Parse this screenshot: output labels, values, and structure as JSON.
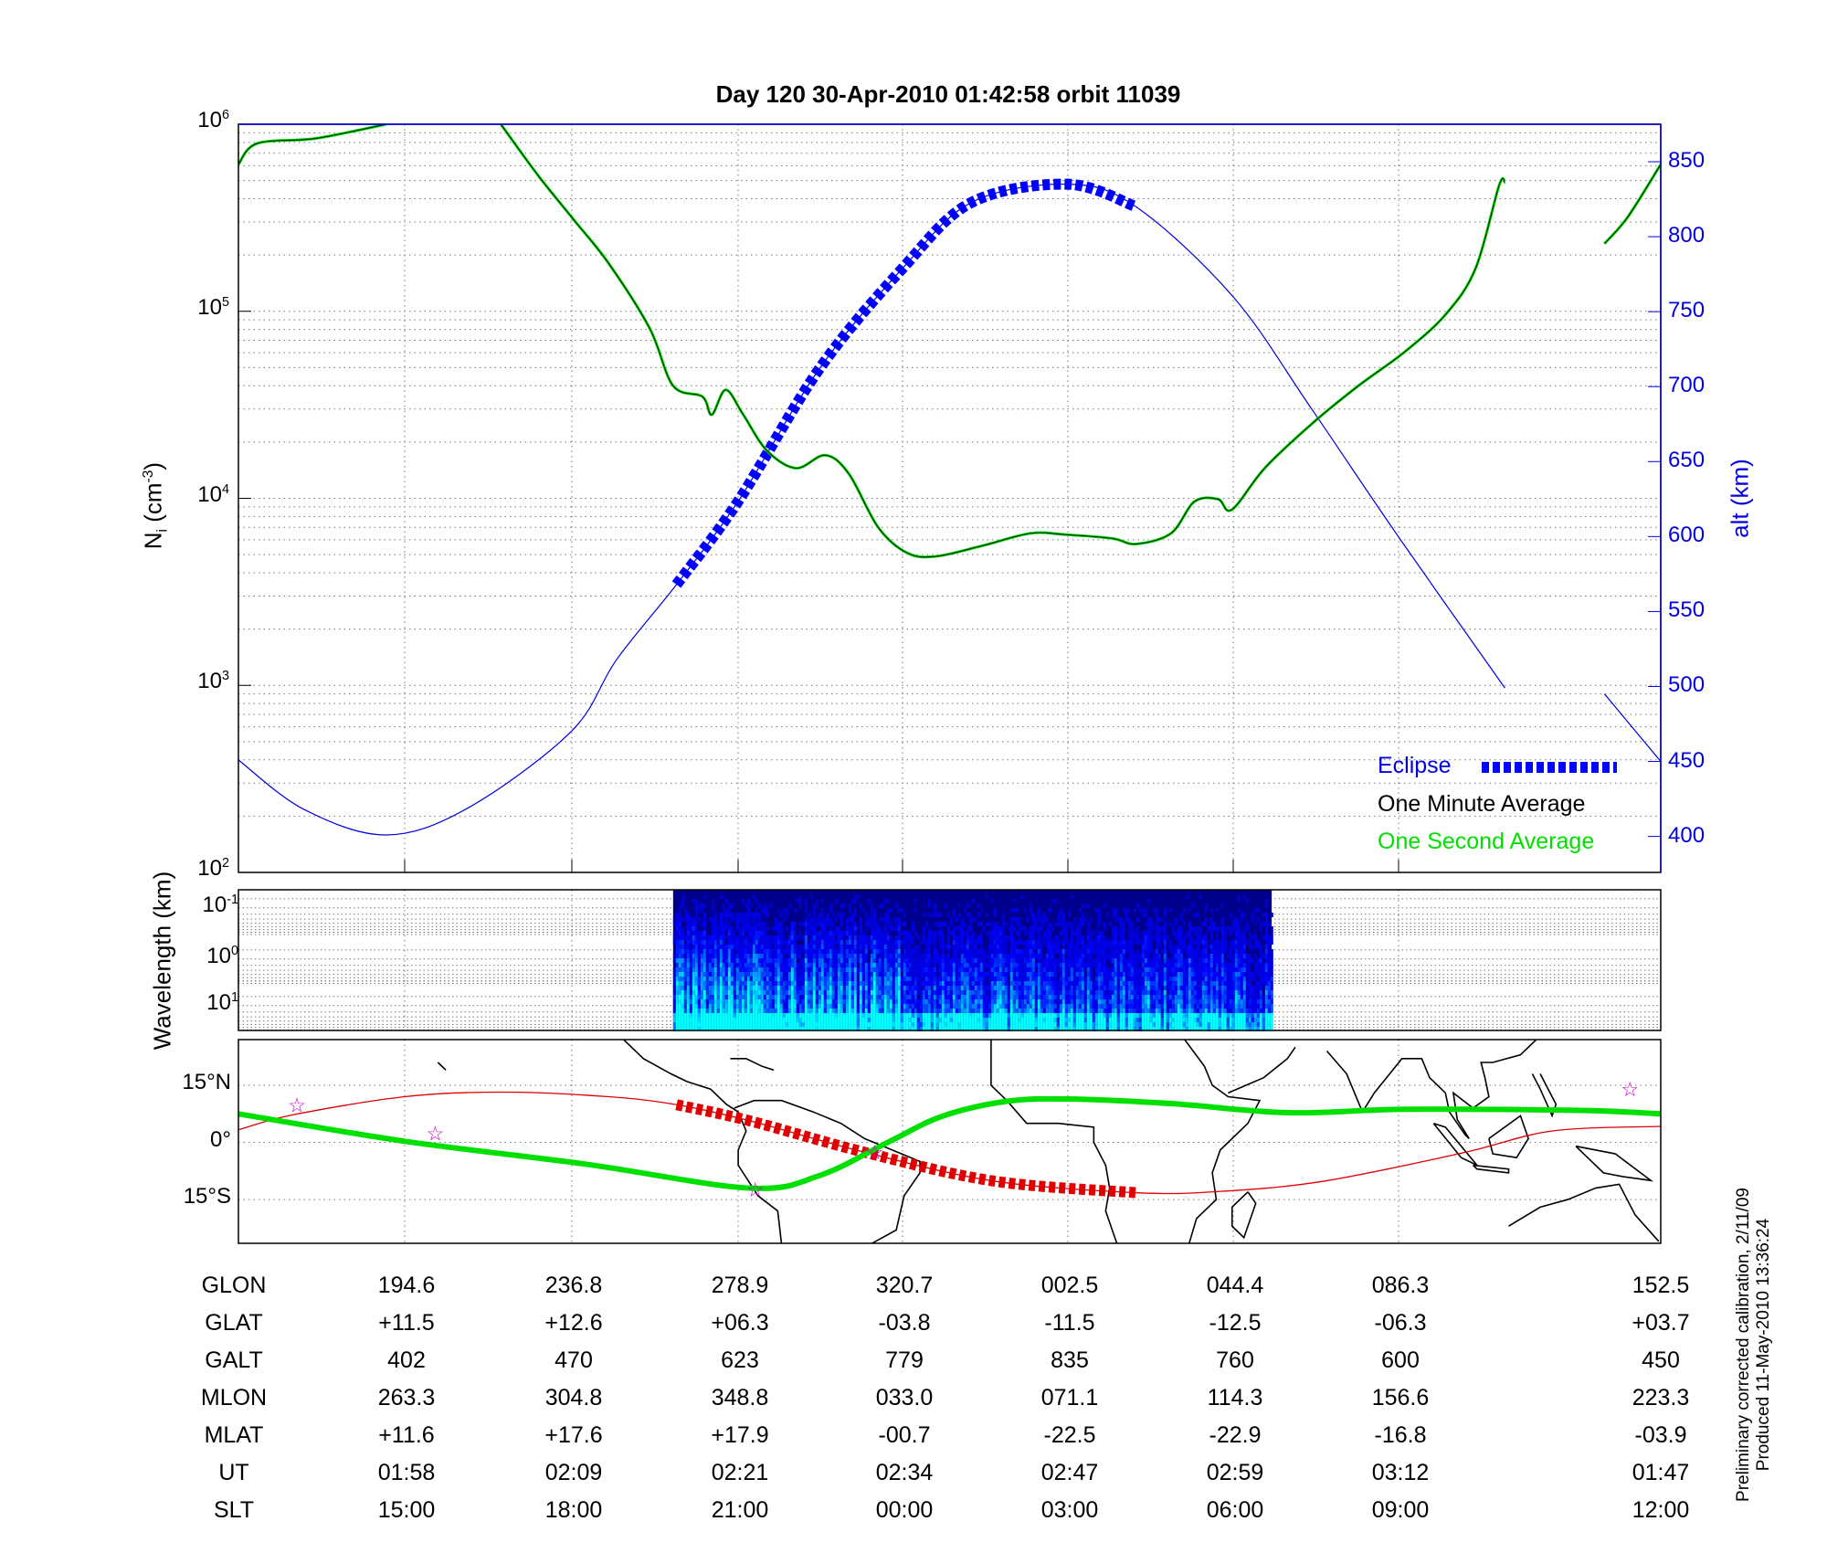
{
  "title": "Day 120  30-Apr-2010 01:42:58   orbit 11039",
  "footer": {
    "line1": "Preliminary corrected calibration, 2/11/09",
    "line2": "Produced 11-May-2010 13:36:24"
  },
  "colors": {
    "one_minute": "#003300",
    "one_second": "#00e000",
    "altitude": "#0000e0",
    "eclipse": "#0000ff",
    "track": "#e00000",
    "ground_track": "#00e000",
    "stars": "#cc00cc",
    "coast": "#000000"
  },
  "chart_data": [
    {
      "type": "line",
      "ylabel": {
        "main": "N",
        "sub": "i",
        "unit": " (cm",
        "exp": "-3",
        "close": ")"
      },
      "y2label": "alt (km)",
      "yscale": "log",
      "ylim": [
        100,
        1000000
      ],
      "y_ticks": [
        {
          "base": "10",
          "exp": "6",
          "value": 1000000
        },
        {
          "base": "10",
          "exp": "5",
          "value": 100000
        },
        {
          "base": "10",
          "exp": "4",
          "value": 10000
        },
        {
          "base": "10",
          "exp": "3",
          "value": 1000
        },
        {
          "base": "10",
          "exp": "2",
          "value": 100
        }
      ],
      "y2lim": [
        376,
        875
      ],
      "y2_ticks": [
        "850",
        "800",
        "750",
        "700",
        "650",
        "600",
        "550",
        "500",
        "450",
        "400"
      ],
      "xlim": [
        "01:45:58",
        "03:31:23"
      ],
      "grid": true,
      "legend": "bottom-right",
      "legend_entries": {
        "eclipse": "Eclipse",
        "one_minute": "One Minute Average",
        "one_second": "One Second Average"
      },
      "density": {
        "segments": [
          [
            [
              "01:45:58",
              610000
            ],
            [
              "01:47:22",
              790000
            ],
            [
              "01:51:42",
              840000
            ],
            [
              "01:56:55",
              1000000
            ]
          ],
          [
            [
              "02:05:25",
              1000000
            ],
            [
              "02:08:12",
              530000
            ],
            [
              "02:10:48",
              310000
            ],
            [
              "02:13:25",
              180000
            ],
            [
              "02:16:27",
              81000
            ],
            [
              "02:18:11",
              40000
            ],
            [
              "02:20:21",
              35000
            ],
            [
              "02:21:03",
              28000
            ],
            [
              "02:22:05",
              38000
            ],
            [
              "02:23:23",
              28000
            ],
            [
              "02:25:08",
              18000
            ],
            [
              "02:27:18",
              14500
            ],
            [
              "02:29:28",
              17000
            ],
            [
              "02:31:13",
              13500
            ],
            [
              "02:33:23",
              7000
            ],
            [
              "02:35:33",
              5100
            ],
            [
              "02:37:43",
              4900
            ],
            [
              "02:41:11",
              5600
            ],
            [
              "02:44:40",
              6500
            ],
            [
              "02:47:16",
              6400
            ],
            [
              "02:50:45",
              6100
            ],
            [
              "02:52:29",
              5700
            ],
            [
              "02:55:05",
              6500
            ],
            [
              "02:56:49",
              9600
            ],
            [
              "02:58:34",
              9900
            ],
            [
              "02:59:36",
              8700
            ],
            [
              "03:02:02",
              14500
            ],
            [
              "03:05:31",
              25000
            ],
            [
              "03:08:59",
              40000
            ],
            [
              "03:12:27",
              61000
            ],
            [
              "03:15:29",
              97000
            ],
            [
              "03:17:40",
              170000
            ],
            [
              "03:19:24",
              470000
            ],
            [
              "03:19:50",
              490000
            ]
          ],
          [
            [
              "03:27:13",
              230000
            ],
            [
              "03:28:57",
              320000
            ],
            [
              "03:31:23",
              610000
            ]
          ]
        ]
      },
      "altitude": {
        "segments": [
          [
            [
              "01:45:58",
              451
            ],
            [
              "01:50:50",
              418
            ],
            [
              "01:56:55",
              401
            ],
            [
              "02:02:59",
              419
            ],
            [
              "02:10:38",
              470
            ],
            [
              "02:14:00",
              518
            ],
            [
              "02:18:26",
              568
            ],
            [
              "02:22:58",
              623
            ],
            [
              "02:29:02",
              712
            ],
            [
              "02:35:12",
              779
            ],
            [
              "02:40:20",
              823
            ],
            [
              "02:47:27",
              835
            ],
            [
              "02:52:29",
              820
            ],
            [
              "02:59:41",
              760
            ],
            [
              "03:05:31",
              685
            ],
            [
              "03:11:56",
              600
            ],
            [
              "03:19:50",
              499
            ]
          ],
          [
            [
              "03:27:13",
              495
            ],
            [
              "03:31:23",
              450
            ]
          ]
        ]
      },
      "eclipse": [
        "02:18:26",
        "02:52:29"
      ]
    },
    {
      "type": "heatmap",
      "ylabel": "Wavelength (km)",
      "y_ticks": [
        {
          "base": "10",
          "exp": "-1"
        },
        {
          "base": "10",
          "exp": "0"
        },
        {
          "base": "10",
          "exp": "1"
        }
      ],
      "x_range": [
        "02:18:11",
        "03:02:33"
      ],
      "colormap": "jet"
    },
    {
      "type": "line",
      "kind": "map",
      "lon_start": 152.5,
      "ylim": [
        -26.5,
        27
      ],
      "y_ticks": [
        {
          "label": "15°N",
          "value": 15
        },
        {
          "label": "0°",
          "value": 0
        },
        {
          "label": "15°S",
          "value": -15
        }
      ],
      "red_track": [
        [
          152.5,
          3.3
        ],
        [
          166.1,
          7.2
        ],
        [
          194.6,
          12
        ],
        [
          219.5,
          13.2
        ],
        [
          246.2,
          12
        ],
        [
          263.4,
          9.9
        ],
        [
          281.8,
          5.7
        ],
        [
          311.4,
          -2.7
        ],
        [
          344.0,
          -10.2
        ],
        [
          19.6,
          -13.2
        ],
        [
          40.4,
          -12.9
        ],
        [
          67.1,
          -10.2
        ],
        [
          102.6,
          -2.7
        ],
        [
          125.0,
          3.0
        ],
        [
          152.5,
          4.2
        ]
      ],
      "red_eclipse": [
        [
          263.4,
          9.9
        ],
        [
          281.8,
          5.7
        ],
        [
          311.4,
          -2.7
        ],
        [
          344.0,
          -10.2
        ],
        [
          19.6,
          -13.2
        ]
      ],
      "green_track": [
        [
          152.5,
          7.5
        ],
        [
          194.6,
          0.3
        ],
        [
          240.3,
          -5.7
        ],
        [
          281.8,
          -12
        ],
        [
          299.6,
          -8.7
        ],
        [
          317.4,
          0.3
        ],
        [
          330.7,
          6.9
        ],
        [
          347.0,
          10.8
        ],
        [
          2.4,
          11.4
        ],
        [
          28.5,
          10.2
        ],
        [
          58.2,
          7.8
        ],
        [
          87.8,
          8.7
        ],
        [
          132.3,
          8.4
        ],
        [
          152.5,
          7.5
        ]
      ],
      "stars": [
        [
          167.3,
          9.9
        ],
        [
          202.3,
          2.4
        ],
        [
          283.3,
          -12.3
        ],
        [
          313.5,
          -2.5
        ],
        [
          144.7,
          14.1
        ]
      ]
    }
  ],
  "table": {
    "rows": [
      {
        "label": "GLON",
        "values": [
          "194.6",
          "236.8",
          "278.9",
          "320.7",
          "002.5",
          "044.4",
          "086.3",
          "152.5"
        ]
      },
      {
        "label": "GLAT",
        "values": [
          "+11.5",
          "+12.6",
          "+06.3",
          "-03.8",
          "-11.5",
          "-12.5",
          "-06.3",
          "+03.7"
        ]
      },
      {
        "label": "GALT",
        "values": [
          "402",
          "470",
          "623",
          "779",
          "835",
          "760",
          "600",
          "450"
        ]
      },
      {
        "label": "MLON",
        "values": [
          "263.3",
          "304.8",
          "348.8",
          "033.0",
          "071.1",
          "114.3",
          "156.6",
          "223.3"
        ]
      },
      {
        "label": "MLAT",
        "values": [
          "+11.6",
          "+17.6",
          "+17.9",
          "-00.7",
          "-22.5",
          "-22.9",
          "-16.8",
          "-03.9"
        ]
      },
      {
        "label": "UT",
        "values": [
          "01:58",
          "02:09",
          "02:21",
          "02:34",
          "02:47",
          "02:59",
          "03:12",
          "01:47"
        ]
      },
      {
        "label": "SLT",
        "values": [
          "15:00",
          "18:00",
          "21:00",
          "00:00",
          "03:00",
          "06:00",
          "09:00",
          "12:00"
        ]
      }
    ]
  }
}
